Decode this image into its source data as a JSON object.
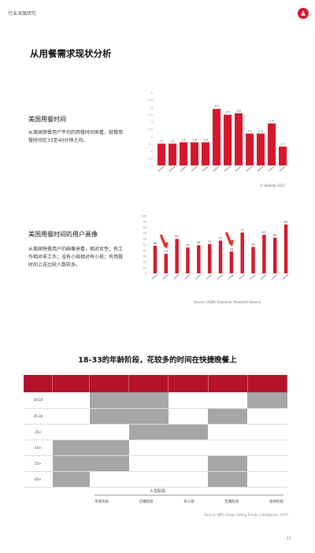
{
  "header": {
    "brand": "行业深度研究",
    "logo_icon": "brand-logo-icon",
    "accent": "#d6182d"
  },
  "page": {
    "title": "从用餐需求现状分析",
    "number": "11"
  },
  "section1": {
    "title": "美国用餐时间",
    "body": "从美国快餐用户平均的用餐时间来看，就餐用餐时间在33至40分钟之间。"
  },
  "section2": {
    "title": "美国用餐时间的用户画像",
    "body": "从美国快餐用户的画像来看，相对女性；有工作相对非工作；没有小孩相对有小孩；有用餐时间上花比较人数较多。"
  },
  "chart_data": [
    {
      "type": "bar",
      "color": "#d6182d",
      "values": [
        1.5,
        1.5,
        1.6,
        1.6,
        1.6,
        3.9,
        3.5,
        3.6,
        2.2,
        2.2,
        2.9,
        1.3
      ],
      "data_labels": [
        "1.5",
        "1.5",
        "1.6",
        "1.6",
        "1.6",
        "3.9",
        "3.5",
        "3.6",
        "2.2",
        "2.2",
        "2.9",
        "1.3"
      ],
      "ylim": [
        0,
        5
      ],
      "yticks": [
        "0",
        "0.5",
        "1",
        "1.5",
        "2",
        "2.5",
        "3",
        "3.5",
        "4",
        "4.5",
        "5"
      ],
      "source": "© Statista 2017"
    },
    {
      "type": "bar",
      "color": "#d6182d",
      "values": [
        48,
        34,
        60,
        45,
        49,
        51,
        57,
        38,
        71,
        46,
        67,
        62,
        85
      ],
      "data_labels": [
        "48",
        "34",
        "60",
        "45",
        "49",
        "51",
        "57",
        "38",
        "71",
        "46",
        "67",
        "62",
        "85"
      ],
      "ylim": [
        0,
        100
      ],
      "yticks": [
        "0",
        "10",
        "20",
        "30",
        "40",
        "50",
        "60",
        "70",
        "80",
        "90",
        "100"
      ],
      "arrows_at": [
        1,
        7
      ],
      "arrow_color": "#e3301f",
      "source": "Source: USDA, Economic Research Service"
    }
  ],
  "table": {
    "title": "18-33的年龄阶段，花较多的时间在快捷晚餐上",
    "header_color": "#b5122b",
    "shade_color": "#a6a6a6",
    "rows": [
      {
        "label": "18-24",
        "shaded": [
          false,
          true,
          true,
          false,
          false,
          true
        ]
      },
      {
        "label": "25-34",
        "shaded": [
          false,
          true,
          true,
          false,
          true,
          false
        ]
      },
      {
        "label": "35+",
        "shaded": [
          false,
          false,
          true,
          true,
          false,
          false
        ]
      },
      {
        "label": "45+",
        "shaded": [
          true,
          true,
          false,
          false,
          false,
          false
        ]
      },
      {
        "label": "55+",
        "shaded": [
          true,
          true,
          false,
          false,
          true,
          false
        ]
      },
      {
        "label": "65+",
        "shaded": [
          true,
          false,
          false,
          false,
          true,
          false
        ]
      }
    ],
    "legend_title": "人生阶段",
    "legend_items": [
      "单身阶段",
      "已婚阶段",
      "有小孩",
      "空巢阶段",
      "退休阶段"
    ],
    "source": "Source: NPD Group; Eating Trends, Intelligence, 2017"
  }
}
